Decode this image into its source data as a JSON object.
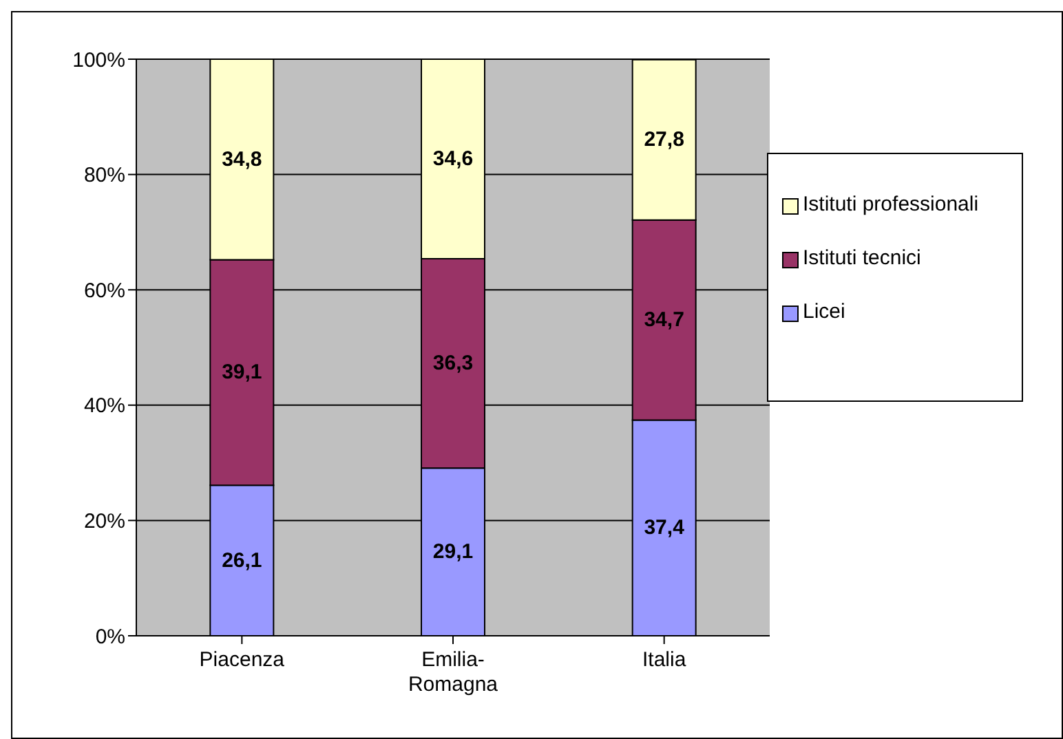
{
  "chart_data": {
    "type": "bar",
    "stacked": true,
    "categories": [
      "Piacenza",
      "Emilia-Romagna",
      "Italia"
    ],
    "series": [
      {
        "name": "Licei",
        "color": "#9999ff",
        "values": [
          26.1,
          29.1,
          37.4
        ],
        "value_labels": [
          "26,1",
          "29,1",
          "37,4"
        ]
      },
      {
        "name": "Istituti tecnici",
        "color": "#993366",
        "values": [
          39.1,
          36.3,
          34.7
        ],
        "value_labels": [
          "39,1",
          "36,3",
          "34,7"
        ]
      },
      {
        "name": "Istituti professionali",
        "color": "#ffffcc",
        "values": [
          34.8,
          34.6,
          27.8
        ],
        "value_labels": [
          "34,8",
          "34,6",
          "27,8"
        ]
      }
    ],
    "ylim": [
      0,
      100
    ],
    "yticks": [
      {
        "value": 0,
        "label": "0%"
      },
      {
        "value": 20,
        "label": "20%"
      },
      {
        "value": 40,
        "label": "40%"
      },
      {
        "value": 60,
        "label": "60%"
      },
      {
        "value": 80,
        "label": "80%"
      },
      {
        "value": 100,
        "label": "100%"
      }
    ],
    "grid": "y",
    "legend": "right"
  }
}
